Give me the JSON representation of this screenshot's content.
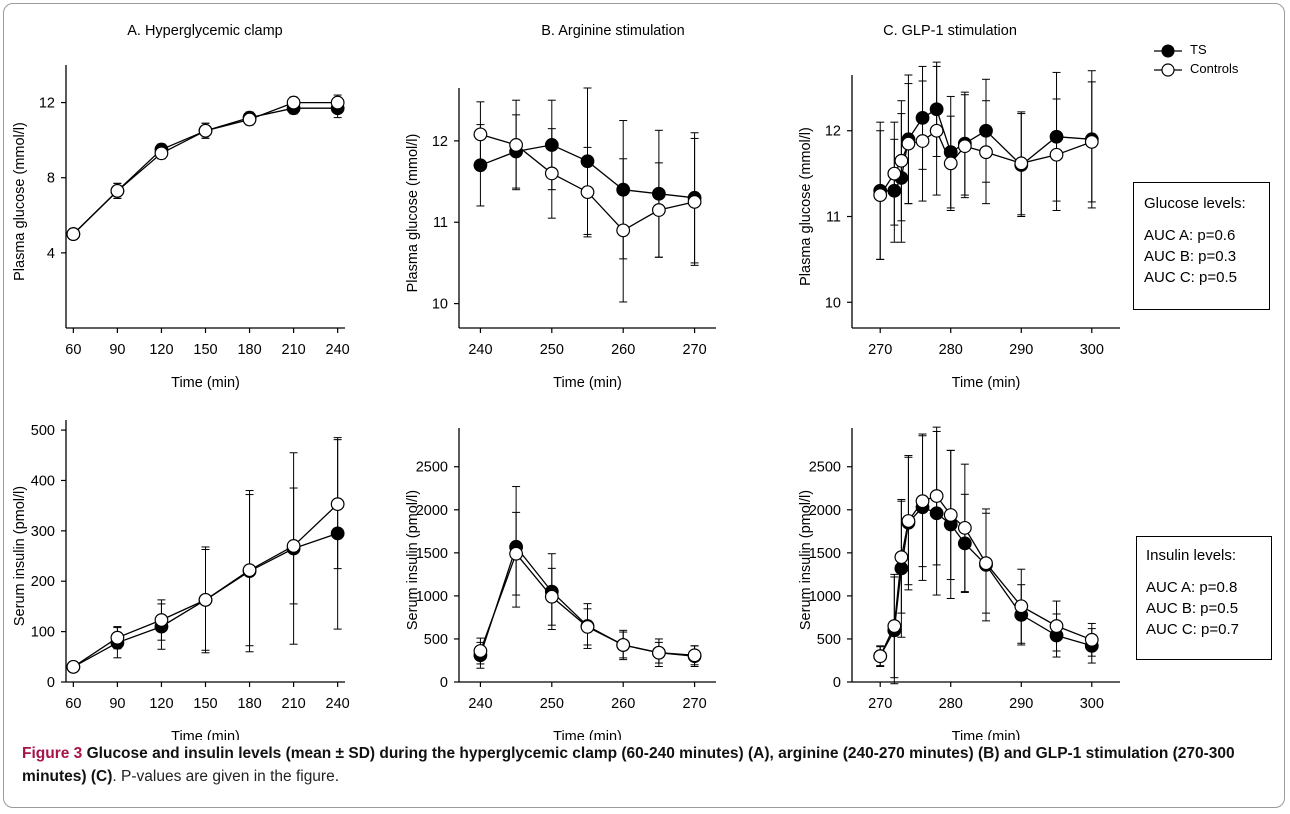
{
  "figure": {
    "caption_label": "Figure 3",
    "caption_bold": "Glucose and insulin levels (mean ± SD) during the hyperglycemic clamp (60-240 minutes) (A), arginine (240-270 minutes) (B) and GLP-1 stimulation (270-300 minutes) (C)",
    "caption_rest": ". P-values are given in the figure.",
    "legend": {
      "ts": "TS",
      "controls": "Controls"
    },
    "glucose_box": {
      "title": "Glucose levels:",
      "lines": [
        "AUC A: p=0.6",
        "AUC B: p=0.3",
        "AUC C: p=0.5"
      ]
    },
    "insulin_box": {
      "title": "Insulin levels:",
      "lines": [
        "AUC A: p=0.8",
        "AUC B: p=0.5",
        "AUC C: p=0.7"
      ]
    }
  },
  "chart_data": [
    {
      "id": "A-glucose",
      "type": "line",
      "title": "A. Hyperglycemic clamp",
      "xlabel": "Time (min)",
      "ylabel": "Plasma glucose (mmol/l)",
      "xlim": [
        55,
        245
      ],
      "ylim": [
        0,
        14
      ],
      "xticks": [
        60,
        90,
        120,
        150,
        180,
        210,
        240
      ],
      "yticks": [
        4,
        8,
        12
      ],
      "series": [
        {
          "name": "TS",
          "fill": "#000000",
          "x": [
            60,
            90,
            120,
            150,
            180,
            210,
            240
          ],
          "y": [
            5.0,
            7.3,
            9.5,
            10.5,
            11.2,
            11.7,
            11.7
          ],
          "sd": [
            0.2,
            0.4,
            0.3,
            0.4,
            0.3,
            0.3,
            0.5
          ]
        },
        {
          "name": "Controls",
          "fill": "#ffffff",
          "x": [
            60,
            90,
            120,
            150,
            180,
            210,
            240
          ],
          "y": [
            5.0,
            7.3,
            9.3,
            10.5,
            11.1,
            12.0,
            12.0
          ],
          "sd": [
            0.2,
            0.4,
            0.3,
            0.4,
            0.3,
            0.3,
            0.4
          ]
        }
      ]
    },
    {
      "id": "B-glucose",
      "type": "line",
      "title": "B. Arginine stimulation",
      "xlabel": "Time (min)",
      "ylabel": "Plasma glucose (mmol/l)",
      "xlim": [
        237,
        273
      ],
      "ylim": [
        9.7,
        12.65
      ],
      "xticks": [
        240,
        250,
        260,
        270
      ],
      "yticks": [
        10,
        11,
        12
      ],
      "series": [
        {
          "name": "TS",
          "fill": "#000000",
          "x": [
            240,
            245,
            250,
            255,
            260,
            265,
            270
          ],
          "y": [
            11.7,
            11.87,
            11.95,
            11.75,
            11.4,
            11.35,
            11.3
          ],
          "sd": [
            0.5,
            0.45,
            0.55,
            0.9,
            0.85,
            0.78,
            0.8
          ]
        },
        {
          "name": "Controls",
          "fill": "#ffffff",
          "x": [
            240,
            245,
            250,
            255,
            260,
            265,
            270
          ],
          "y": [
            12.08,
            11.95,
            11.6,
            11.37,
            10.9,
            11.15,
            11.25
          ],
          "sd": [
            0.4,
            0.55,
            0.55,
            0.55,
            0.88,
            0.58,
            0.78
          ]
        }
      ]
    },
    {
      "id": "C-glucose",
      "type": "line",
      "title": "C. GLP-1 stimulation",
      "xlabel": "Time (min)",
      "ylabel": "Plasma glucose (mmol/l)",
      "xlim": [
        266,
        304
      ],
      "ylim": [
        9.7,
        12.65
      ],
      "xticks": [
        270,
        280,
        290,
        300
      ],
      "yticks": [
        10,
        11,
        12
      ],
      "series": [
        {
          "name": "TS",
          "fill": "#000000",
          "x": [
            270,
            272,
            273,
            274,
            276,
            278,
            280,
            282,
            285,
            290,
            295,
            300
          ],
          "y": [
            11.3,
            11.3,
            11.45,
            11.9,
            12.15,
            12.25,
            11.75,
            11.85,
            12.0,
            11.6,
            11.93,
            11.9
          ],
          "sd": [
            0.8,
            0.6,
            0.75,
            0.75,
            0.6,
            0.55,
            0.65,
            0.6,
            0.6,
            0.6,
            0.75,
            0.8
          ]
        },
        {
          "name": "Controls",
          "fill": "#ffffff",
          "x": [
            270,
            272,
            273,
            274,
            276,
            278,
            280,
            282,
            285,
            290,
            295,
            300
          ],
          "y": [
            11.25,
            11.5,
            11.65,
            11.85,
            11.88,
            12.0,
            11.62,
            11.82,
            11.75,
            11.62,
            11.72,
            11.87
          ],
          "sd": [
            0.75,
            0.6,
            0.7,
            0.7,
            0.7,
            0.75,
            0.55,
            0.6,
            0.6,
            0.6,
            0.65,
            0.7
          ]
        }
      ]
    },
    {
      "id": "A-insulin",
      "type": "line",
      "title": "",
      "xlabel": "Time (min)",
      "ylabel": "Serum insulin (pmol/l)",
      "xlim": [
        55,
        245
      ],
      "ylim": [
        0,
        520
      ],
      "xticks": [
        60,
        90,
        120,
        150,
        180,
        210,
        240
      ],
      "yticks": [
        0,
        100,
        200,
        300,
        400,
        500
      ],
      "series": [
        {
          "name": "TS",
          "fill": "#000000",
          "x": [
            60,
            90,
            120,
            150,
            180,
            210,
            240
          ],
          "y": [
            30,
            78,
            110,
            163,
            220,
            265,
            295
          ],
          "sd": [
            10,
            30,
            45,
            100,
            160,
            190,
            190
          ]
        },
        {
          "name": "Controls",
          "fill": "#ffffff",
          "x": [
            60,
            90,
            120,
            150,
            180,
            210,
            240
          ],
          "y": [
            30,
            88,
            123,
            163,
            222,
            270,
            353
          ],
          "sd": [
            10,
            22,
            40,
            105,
            150,
            115,
            128
          ]
        }
      ]
    },
    {
      "id": "B-insulin",
      "type": "line",
      "title": "",
      "xlabel": "Time (min)",
      "ylabel": "Serum insulin (pmol/l)",
      "xlim": [
        237,
        273
      ],
      "ylim": [
        0,
        2950
      ],
      "xticks": [
        240,
        250,
        260,
        270
      ],
      "yticks": [
        0,
        500,
        1000,
        1500,
        2000,
        2500
      ],
      "series": [
        {
          "name": "TS",
          "fill": "#000000",
          "x": [
            240,
            245,
            250,
            255,
            260,
            265,
            270
          ],
          "y": [
            310,
            1570,
            1050,
            650,
            430,
            340,
            300
          ],
          "sd": [
            150,
            700,
            440,
            260,
            170,
            160,
            120
          ]
        },
        {
          "name": "Controls",
          "fill": "#ffffff",
          "x": [
            240,
            245,
            250,
            255,
            260,
            265,
            270
          ],
          "y": [
            360,
            1490,
            990,
            640,
            430,
            340,
            310
          ],
          "sd": [
            150,
            480,
            330,
            210,
            150,
            120,
            110
          ]
        }
      ]
    },
    {
      "id": "C-insulin",
      "type": "line",
      "title": "",
      "xlabel": "Time (min)",
      "ylabel": "Serum insulin (pmol/l)",
      "xlim": [
        266,
        304
      ],
      "ylim": [
        0,
        2950
      ],
      "xticks": [
        270,
        280,
        290,
        300
      ],
      "yticks": [
        0,
        500,
        1000,
        1500,
        2000,
        2500
      ],
      "series": [
        {
          "name": "TS",
          "fill": "#000000",
          "x": [
            270,
            272,
            273,
            274,
            276,
            278,
            280,
            282,
            285,
            290,
            295,
            300
          ],
          "y": [
            300,
            600,
            1320,
            1850,
            2030,
            1960,
            1830,
            1610,
            1360,
            780,
            540,
            420
          ],
          "sd": [
            120,
            620,
            800,
            780,
            850,
            950,
            860,
            570,
            650,
            350,
            250,
            200
          ]
        },
        {
          "name": "Controls",
          "fill": "#ffffff",
          "x": [
            270,
            272,
            273,
            274,
            276,
            278,
            280,
            282,
            285,
            290,
            295,
            300
          ],
          "y": [
            300,
            650,
            1450,
            1870,
            2100,
            2160,
            1940,
            1790,
            1380,
            880,
            650,
            490
          ],
          "sd": [
            110,
            600,
            650,
            740,
            760,
            800,
            750,
            740,
            580,
            430,
            290,
            190
          ]
        }
      ]
    }
  ]
}
